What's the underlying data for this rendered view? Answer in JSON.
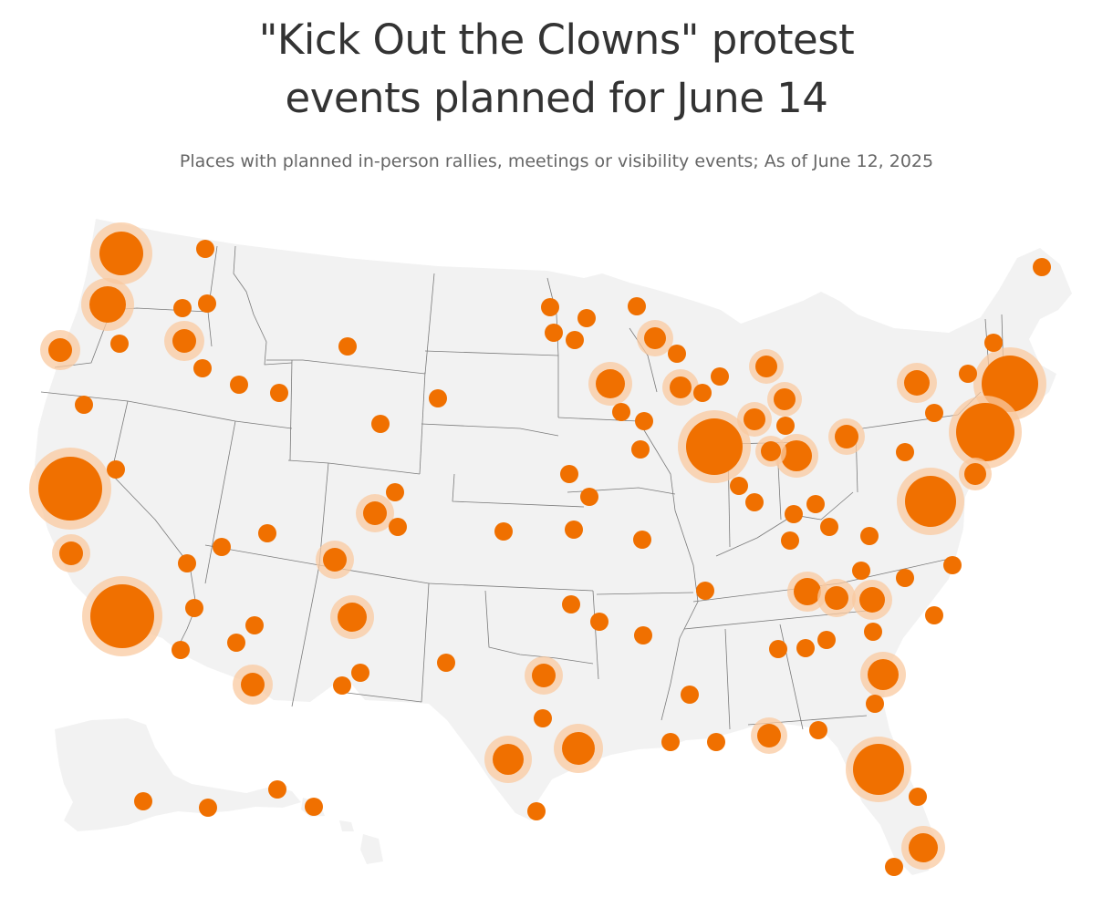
{
  "title": {
    "line1": "\"Kick Out the Clowns\" protest",
    "line2": "events planned for June 14"
  },
  "subtitle": "Places with planned in-person rallies, meetings or visibility events; As of June 12, 2025",
  "colors": {
    "marker": "#f07000",
    "marker_halo": "#f9c9a0",
    "land": "#f2f2f2",
    "border": "#7a7a7a",
    "title": "#333333",
    "subtitle": "#666666"
  },
  "markers": [
    {
      "place": "Seattle, WA",
      "size": "large"
    },
    {
      "place": "Spokane, WA",
      "size": "small"
    },
    {
      "place": "Portland, OR",
      "size": "large"
    },
    {
      "place": "Pendleton, OR",
      "size": "small"
    },
    {
      "place": "Moscow, ID",
      "size": "small"
    },
    {
      "place": "Newport, OR",
      "size": "medium"
    },
    {
      "place": "Bend, OR",
      "size": "small"
    },
    {
      "place": "Boise, ID",
      "size": "medium"
    },
    {
      "place": "Twin Falls, ID",
      "size": "small"
    },
    {
      "place": "Idaho Falls, ID",
      "size": "small"
    },
    {
      "place": "Pocatello, ID",
      "size": "small"
    },
    {
      "place": "Bozeman, MT",
      "size": "small"
    },
    {
      "place": "Eureka, CA",
      "size": "small"
    },
    {
      "place": "Reno, NV",
      "size": "small"
    },
    {
      "place": "San Francisco, CA",
      "size": "xlarge"
    },
    {
      "place": "Fresno, CA",
      "size": "medium"
    },
    {
      "place": "Los Angeles, CA",
      "size": "xlarge"
    },
    {
      "place": "Las Vegas, NV",
      "size": "small"
    },
    {
      "place": "St. George, UT",
      "size": "small"
    },
    {
      "place": "Salt Lake City, UT",
      "size": "small"
    },
    {
      "place": "Moab, UT",
      "size": "small"
    },
    {
      "place": "San Diego, CA",
      "size": "small"
    },
    {
      "place": "Lake Havasu, AZ",
      "size": "small"
    },
    {
      "place": "Phoenix, AZ",
      "size": "small"
    },
    {
      "place": "Flagstaff, AZ",
      "size": "small"
    },
    {
      "place": "Tucson, AZ",
      "size": "medium"
    },
    {
      "place": "Casper, WY",
      "size": "small"
    },
    {
      "place": "Rapid City, SD",
      "size": "small"
    },
    {
      "place": "Fort Collins, CO",
      "size": "small"
    },
    {
      "place": "Denver, CO",
      "size": "medium"
    },
    {
      "place": "Colorado Springs, CO",
      "size": "small"
    },
    {
      "place": "Durango, CO",
      "size": "medium"
    },
    {
      "place": "Albuquerque, NM",
      "size": "medium"
    },
    {
      "place": "Las Cruces, NM",
      "size": "small"
    },
    {
      "place": "El Paso, TX",
      "size": "small"
    },
    {
      "place": "Midland, TX",
      "size": "small"
    },
    {
      "place": "Fargo, ND",
      "size": "small"
    },
    {
      "place": "Duluth, MN",
      "size": "small"
    },
    {
      "place": "Minneapolis, MN",
      "size": "medium"
    },
    {
      "place": "Sioux Falls, SD",
      "size": "small"
    },
    {
      "place": "Omaha, NE",
      "size": "small"
    },
    {
      "place": "Wichita, KS",
      "size": "small"
    },
    {
      "place": "Kansas City, MO",
      "size": "small"
    },
    {
      "place": "Madison, WI",
      "size": "small"
    },
    {
      "place": "Milwaukee, WI",
      "size": "medium"
    },
    {
      "place": "Chicago, IL",
      "size": "xlarge"
    },
    {
      "place": "Grand Rapids, MI",
      "size": "medium"
    },
    {
      "place": "Detroit, MI",
      "size": "medium"
    },
    {
      "place": "Ann Arbor, MI",
      "size": "medium"
    },
    {
      "place": "Columbus, OH",
      "size": "small"
    },
    {
      "place": "Cleveland, OH",
      "size": "medium"
    },
    {
      "place": "Indianapolis, IN",
      "size": "small"
    },
    {
      "place": "St. Louis, MO",
      "size": "small"
    },
    {
      "place": "Louisville, KY",
      "size": "small"
    },
    {
      "place": "Nashville, TN",
      "size": "medium"
    },
    {
      "place": "Knoxville, TN",
      "size": "medium"
    },
    {
      "place": "Asheville, NC",
      "size": "medium"
    },
    {
      "place": "Memphis, TN",
      "size": "small"
    },
    {
      "place": "Oklahoma City, OK",
      "size": "small"
    },
    {
      "place": "Dallas, TX",
      "size": "medium"
    },
    {
      "place": "Austin, TX",
      "size": "medium"
    },
    {
      "place": "Houston, TX",
      "size": "medium"
    },
    {
      "place": "Corpus Christi, TX",
      "size": "small"
    },
    {
      "place": "New Orleans, LA",
      "size": "small"
    },
    {
      "place": "Birmingham, AL",
      "size": "small"
    },
    {
      "place": "Atlanta, GA",
      "size": "small"
    },
    {
      "place": "Pensacola, FL",
      "size": "medium"
    },
    {
      "place": "Tallahassee, FL",
      "size": "small"
    },
    {
      "place": "Savannah, GA",
      "size": "medium"
    },
    {
      "place": "Tampa, FL",
      "size": "xlarge"
    },
    {
      "place": "Miami, FL",
      "size": "medium"
    },
    {
      "place": "Key West, FL",
      "size": "small"
    },
    {
      "place": "Charlotte, NC",
      "size": "small"
    },
    {
      "place": "Raleigh, NC",
      "size": "small"
    },
    {
      "place": "Richmond, VA",
      "size": "small"
    },
    {
      "place": "Washington, DC",
      "size": "xlarge"
    },
    {
      "place": "Philadelphia, PA",
      "size": "medium"
    },
    {
      "place": "New York, NY",
      "size": "xlarge"
    },
    {
      "place": "Boston, MA",
      "size": "xlarge"
    },
    {
      "place": "Buffalo, NY",
      "size": "medium"
    },
    {
      "place": "Pittsburgh, PA",
      "size": "medium"
    },
    {
      "place": "Burlington, VT",
      "size": "small"
    },
    {
      "place": "Portland, ME",
      "size": "small"
    },
    {
      "place": "Anchorage, AK",
      "size": "small"
    },
    {
      "place": "Juneau, AK",
      "size": "small"
    },
    {
      "place": "Honolulu, HI",
      "size": "small"
    },
    {
      "place": "Hilo, HI",
      "size": "small"
    }
  ]
}
